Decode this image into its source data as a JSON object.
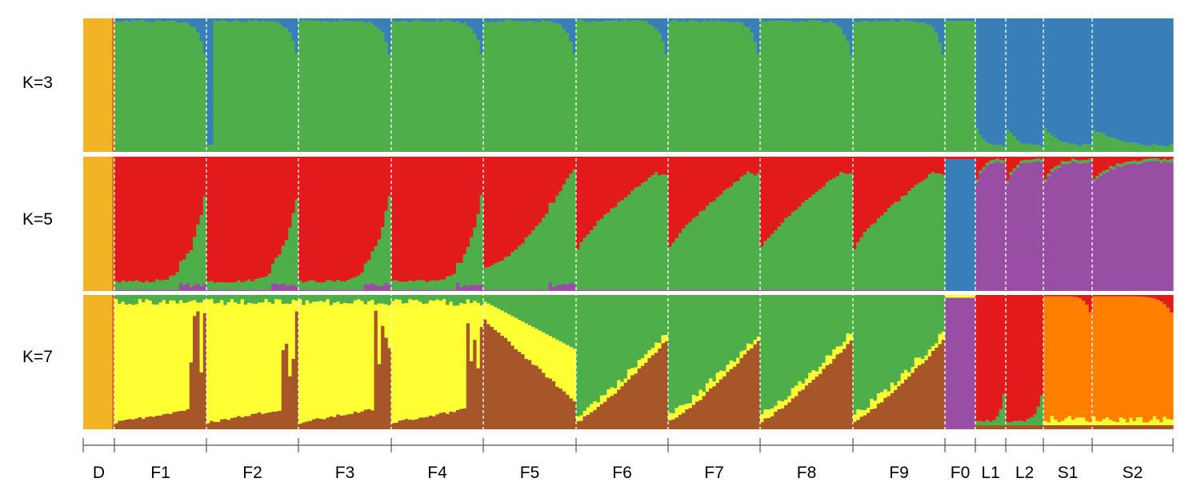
{
  "chart_data": {
    "type": "bar",
    "subtype": "stacked-admixture",
    "rows": [
      {
        "label": "K=3",
        "components": [
          "#F2B325",
          "#4DAE4A",
          "#387FB8"
        ]
      },
      {
        "label": "K=5",
        "components": [
          "#F2B325",
          "#E31A1C",
          "#4DAE4A",
          "#387FB8",
          "#984EA3"
        ]
      },
      {
        "label": "K=7",
        "components": [
          "#F2B325",
          "#FFFF33",
          "#A65628",
          "#4DAE4A",
          "#984EA3",
          "#E31A1C",
          "#FF7F00"
        ]
      }
    ],
    "populations": [
      {
        "label": "D",
        "n": 8
      },
      {
        "label": "F1",
        "n": 27
      },
      {
        "label": "F2",
        "n": 27
      },
      {
        "label": "F3",
        "n": 27
      },
      {
        "label": "F4",
        "n": 27
      },
      {
        "label": "F5",
        "n": 27
      },
      {
        "label": "F6",
        "n": 27
      },
      {
        "label": "F7",
        "n": 27
      },
      {
        "label": "F8",
        "n": 27
      },
      {
        "label": "F9",
        "n": 27
      },
      {
        "label": "F0",
        "n": 9
      },
      {
        "label": "L1",
        "n": 9
      },
      {
        "label": "L2",
        "n": 11
      },
      {
        "label": "S1",
        "n": 14
      },
      {
        "label": "S2",
        "n": 24
      }
    ],
    "ylim": [
      0,
      1
    ],
    "colors": {
      "orange_gold": "#F2B325",
      "green": "#4DAE4A",
      "blue": "#387FB8",
      "red": "#E31A1C",
      "purple": "#984EA3",
      "yellow": "#FFFF33",
      "brown": "#A65628",
      "orange": "#FF7F00"
    }
  }
}
